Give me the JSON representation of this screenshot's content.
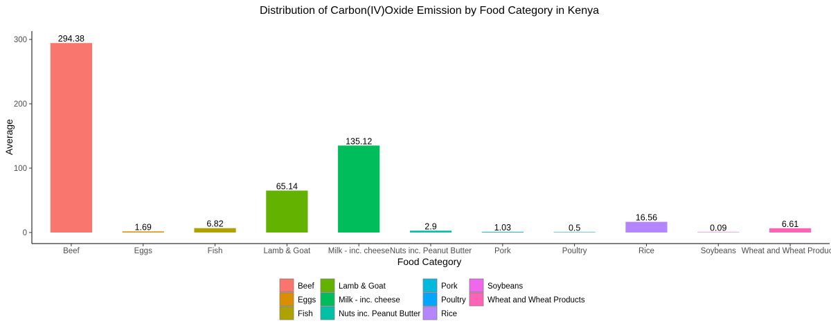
{
  "chart_data": {
    "type": "bar",
    "title": "Distribution of Carbon(IV)Oxide Emission by Food Category in Kenya",
    "xlabel": "Food Category",
    "ylabel": "Average",
    "categories": [
      "Beef",
      "Eggs",
      "Fish",
      "Lamb & Goat",
      "Milk - inc. cheese",
      "Nuts inc. Peanut Butter",
      "Pork",
      "Poultry",
      "Rice",
      "Soybeans",
      "Wheat and Wheat Products"
    ],
    "values": [
      294.38,
      1.69,
      6.82,
      65.14,
      135.12,
      2.9,
      1.03,
      0.5,
      16.56,
      0.09,
      6.61
    ],
    "data_labels": [
      "294.38",
      "1.69",
      "6.82",
      "65.14",
      "135.12",
      "2.9",
      "1.03",
      "0.5",
      "16.56",
      "0.09",
      "6.61"
    ],
    "colors": [
      "#F8766D",
      "#DB8E00",
      "#AEA200",
      "#64B200",
      "#00BD5C",
      "#00C1A7",
      "#00BADE",
      "#00A6FF",
      "#B385FF",
      "#EF67EB",
      "#FF63B6"
    ],
    "ylim": [
      0,
      310
    ],
    "yticks": [
      0,
      100,
      200,
      300
    ],
    "grid": false,
    "legend": {
      "position": "bottom",
      "columns": [
        [
          "Beef",
          "Eggs",
          "Fish"
        ],
        [
          "Lamb & Goat",
          "Milk - inc. cheese",
          "Nuts inc. Peanut Butter"
        ],
        [
          "Pork",
          "Poultry",
          "Rice"
        ],
        [
          "Soybeans",
          "Wheat and Wheat Products"
        ]
      ]
    }
  }
}
